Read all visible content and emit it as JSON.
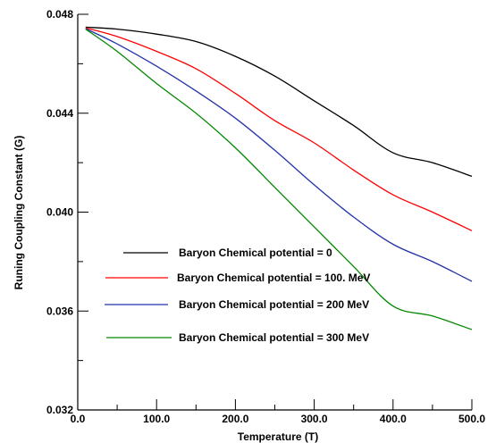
{
  "chart_data": {
    "type": "line",
    "xlabel": "Temperature (T)",
    "ylabel": "Runing Coupling Constant (G)",
    "xlim": [
      0,
      500
    ],
    "ylim": [
      0.032,
      0.048
    ],
    "xticks": [
      0,
      100,
      200,
      300,
      400,
      500
    ],
    "xtick_labels": [
      "0.0",
      "100.0",
      "200.0",
      "300.0",
      "400.0",
      "500.0"
    ],
    "yticks": [
      0.032,
      0.036,
      0.04,
      0.044,
      0.048
    ],
    "ytick_labels": [
      "0.032",
      "0.036",
      "0.040",
      "0.044",
      "0.048"
    ],
    "grid": false,
    "legend_position": "lower-left",
    "x": [
      10,
      50,
      100,
      150,
      200,
      250,
      300,
      350,
      400,
      450,
      500
    ],
    "series": [
      {
        "name": "Baryon Chemical potential = 0",
        "color": "#000000",
        "values": [
          0.04748,
          0.0474,
          0.0472,
          0.0469,
          0.0463,
          0.0455,
          0.0445,
          0.0435,
          0.0424,
          0.042,
          0.04145
        ]
      },
      {
        "name": "Baryon Chemical potential = 100. MeV",
        "color": "#ff0000",
        "values": [
          0.04745,
          0.0471,
          0.0465,
          0.0458,
          0.0448,
          0.0437,
          0.0428,
          0.0417,
          0.0407,
          0.04,
          0.03925
        ]
      },
      {
        "name": "Baryon Chemical potential = 200 MeV",
        "color": "#2233aa",
        "values": [
          0.04742,
          0.0468,
          0.0459,
          0.0449,
          0.0438,
          0.0425,
          0.0411,
          0.0398,
          0.0387,
          0.038,
          0.0372
        ]
      },
      {
        "name": "Baryon Chemical potential = 300 MeV",
        "color": "#008800",
        "values": [
          0.0474,
          0.0465,
          0.0452,
          0.044,
          0.0426,
          0.041,
          0.0394,
          0.0378,
          0.0362,
          0.0358,
          0.03525
        ]
      }
    ]
  }
}
